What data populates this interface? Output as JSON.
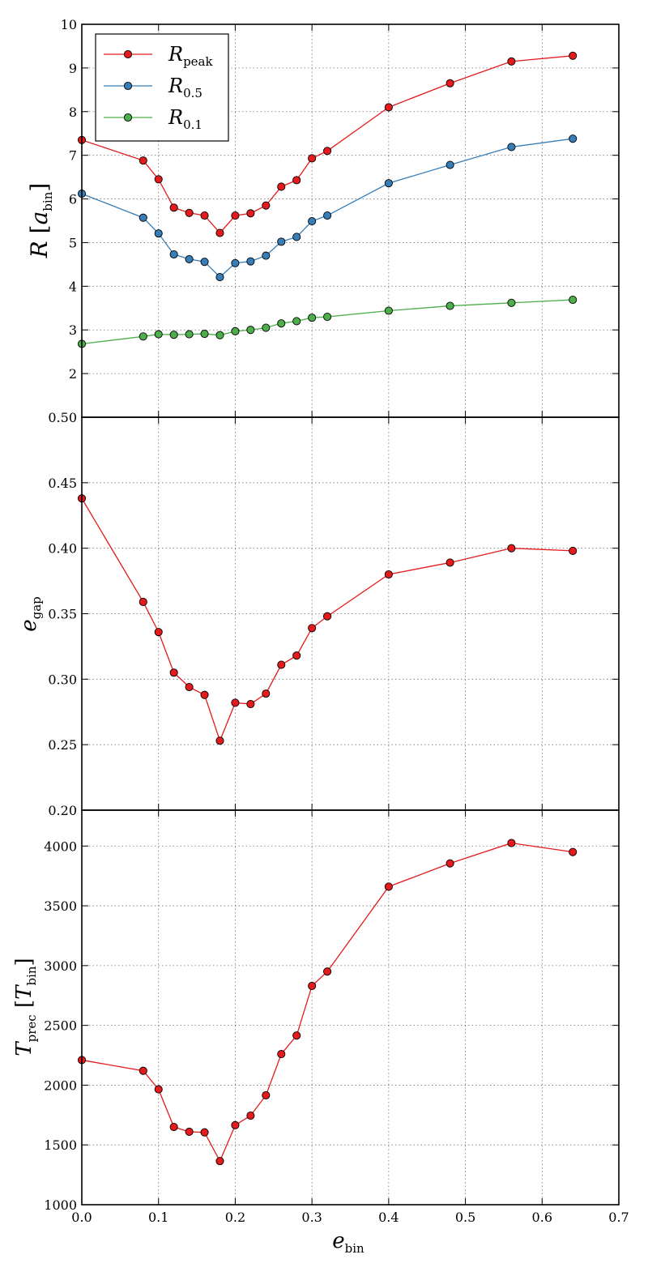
{
  "chart_data": [
    {
      "type": "line",
      "ylabel": "R",
      "ylabel_unit": "a",
      "ylabel_unit_sub": "bin",
      "xlim": [
        0,
        0.7
      ],
      "ylim": [
        1,
        10
      ],
      "yticks": [
        "10",
        "9",
        "8",
        "7",
        "6",
        "5",
        "4",
        "3",
        "2"
      ],
      "ytick_values": [
        10,
        9,
        8,
        7,
        6,
        5,
        4,
        3,
        2
      ],
      "grid": true,
      "legend_position": "top-left",
      "x": [
        0.0,
        0.08,
        0.1,
        0.12,
        0.14,
        0.16,
        0.18,
        0.2,
        0.22,
        0.24,
        0.26,
        0.28,
        0.3,
        0.32,
        0.4,
        0.48,
        0.56,
        0.64
      ],
      "series": [
        {
          "name": "R",
          "name_sub": "peak",
          "color": "#e41a1c",
          "values": [
            7.35,
            6.88,
            6.45,
            5.8,
            5.68,
            5.62,
            5.22,
            5.62,
            5.67,
            5.85,
            6.28,
            6.43,
            6.93,
            7.1,
            8.1,
            8.65,
            9.15,
            9.28
          ]
        },
        {
          "name": "R",
          "name_sub": "0.5",
          "color": "#377eb8",
          "values": [
            6.12,
            5.57,
            5.21,
            4.73,
            4.62,
            4.56,
            4.21,
            4.53,
            4.57,
            4.7,
            5.02,
            5.13,
            5.49,
            5.62,
            6.36,
            6.78,
            7.19,
            7.38
          ]
        },
        {
          "name": "R",
          "name_sub": "0.1",
          "color": "#4daf4a",
          "values": [
            2.68,
            2.85,
            2.9,
            2.89,
            2.9,
            2.91,
            2.88,
            2.97,
            3.0,
            3.05,
            3.15,
            3.2,
            3.28,
            3.3,
            3.44,
            3.55,
            3.62,
            3.69
          ]
        }
      ]
    },
    {
      "type": "line",
      "ylabel": "e",
      "ylabel_sub": "gap",
      "xlim": [
        0,
        0.7
      ],
      "ylim": [
        0.2,
        0.5
      ],
      "yticks": [
        "0.50",
        "0.45",
        "0.40",
        "0.35",
        "0.30",
        "0.25",
        "0.20"
      ],
      "ytick_values": [
        0.5,
        0.45,
        0.4,
        0.35,
        0.3,
        0.25,
        0.2
      ],
      "grid": true,
      "x": [
        0.0,
        0.08,
        0.1,
        0.12,
        0.14,
        0.16,
        0.18,
        0.2,
        0.22,
        0.24,
        0.26,
        0.28,
        0.3,
        0.32,
        0.4,
        0.48,
        0.56,
        0.64
      ],
      "series": [
        {
          "color": "#e41a1c",
          "values": [
            0.438,
            0.359,
            0.336,
            0.305,
            0.294,
            0.288,
            0.253,
            0.282,
            0.281,
            0.289,
            0.311,
            0.318,
            0.339,
            0.348,
            0.38,
            0.389,
            0.4,
            0.398
          ]
        }
      ]
    },
    {
      "type": "line",
      "ylabel": "T",
      "ylabel_sub": "prec",
      "ylabel_unit": "T",
      "ylabel_unit_sub": "bin",
      "xlabel": "e",
      "xlabel_sub": "bin",
      "xlim": [
        0,
        0.7
      ],
      "ylim": [
        1000,
        4300
      ],
      "xticks": [
        "0.0",
        "0.1",
        "0.2",
        "0.3",
        "0.4",
        "0.5",
        "0.6",
        "0.7"
      ],
      "xtick_values": [
        0.0,
        0.1,
        0.2,
        0.3,
        0.4,
        0.5,
        0.6,
        0.7
      ],
      "yticks": [
        "4000",
        "3500",
        "3000",
        "2500",
        "2000",
        "1500",
        "1000"
      ],
      "ytick_values": [
        4000,
        3500,
        3000,
        2500,
        2000,
        1500,
        1000
      ],
      "grid": true,
      "x": [
        0.0,
        0.08,
        0.1,
        0.12,
        0.14,
        0.16,
        0.18,
        0.2,
        0.22,
        0.24,
        0.26,
        0.28,
        0.3,
        0.32,
        0.4,
        0.48,
        0.56,
        0.64
      ],
      "series": [
        {
          "color": "#e41a1c",
          "values": [
            2210,
            2120,
            1965,
            1650,
            1610,
            1605,
            1365,
            1665,
            1745,
            1915,
            2260,
            2415,
            2830,
            2950,
            3660,
            3855,
            4025,
            3950
          ]
        }
      ]
    }
  ]
}
